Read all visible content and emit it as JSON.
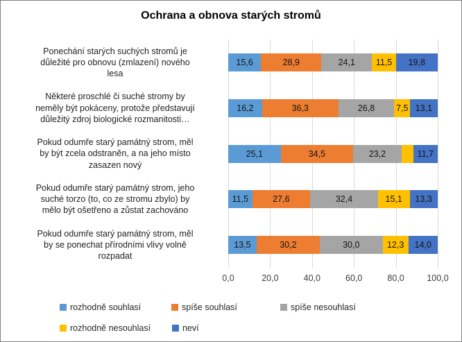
{
  "chart_data": {
    "type": "bar",
    "orientation": "horizontal",
    "stacked": true,
    "grid": true,
    "title": "Ochrana a obnova starých stromů",
    "xlim": [
      0,
      100
    ],
    "x_ticks": [
      "0,0",
      "20,0",
      "40,0",
      "60,0",
      "80,0",
      "100,0"
    ],
    "categories": [
      [
        "Ponechání starých suchých stromů je",
        "důležité pro obnovu (zmlazení) nového",
        "lesa"
      ],
      [
        "Některé proschlé či suché stromy by",
        "neměly být pokáceny, protože představují",
        "důležitý zdroj biologické rozmanitosti…"
      ],
      [
        "Pokud odumře starý památný strom, měl",
        "by být zcela odstraněn, a na jeho místo",
        "zasazen nový"
      ],
      [
        "Pokud odumře starý památný strom, jeho",
        "suché torzo (to, co ze stromu zbylo) by",
        "mělo být ošetřeno a zůstat zachováno"
      ],
      [
        "Pokud odumře starý památný strom, měl",
        "by se ponechat přírodními vlivy volně",
        "rozpadat"
      ]
    ],
    "series": [
      {
        "name": "rozhodně souhlasí",
        "color": "#5B9BD5",
        "values": [
          15.6,
          16.2,
          25.1,
          11.5,
          13.5
        ],
        "labels": [
          "15,6",
          "16,2",
          "25,1",
          "11,5",
          "13,5"
        ]
      },
      {
        "name": "spíše souhlasí",
        "color": "#ED7D31",
        "values": [
          28.9,
          36.3,
          34.5,
          27.6,
          30.2
        ],
        "labels": [
          "28,9",
          "36,3",
          "34,5",
          "27,6",
          "30,2"
        ]
      },
      {
        "name": "spíše nesouhlasí",
        "color": "#A5A5A5",
        "values": [
          24.1,
          26.8,
          23.2,
          32.4,
          30.0
        ],
        "labels": [
          "24,1",
          "26,8",
          "23,2",
          "32,4",
          "30,0"
        ]
      },
      {
        "name": "rozhodně nesouhlasí",
        "color": "#FFC000",
        "values": [
          11.5,
          7.5,
          5.5,
          15.1,
          12.3
        ],
        "labels": [
          "11,5",
          "7,5",
          "",
          "15,1",
          "12,3"
        ]
      },
      {
        "name": "neví",
        "color": "#4472C4",
        "values": [
          19.8,
          13.1,
          11.7,
          13.3,
          14.0
        ],
        "labels": [
          "19,8",
          "13,1",
          "11,7",
          "13,3",
          "14,0"
        ]
      }
    ],
    "legend_rows": [
      [
        0,
        1,
        2
      ],
      [
        3,
        4
      ]
    ],
    "legend_position": "bottom"
  }
}
